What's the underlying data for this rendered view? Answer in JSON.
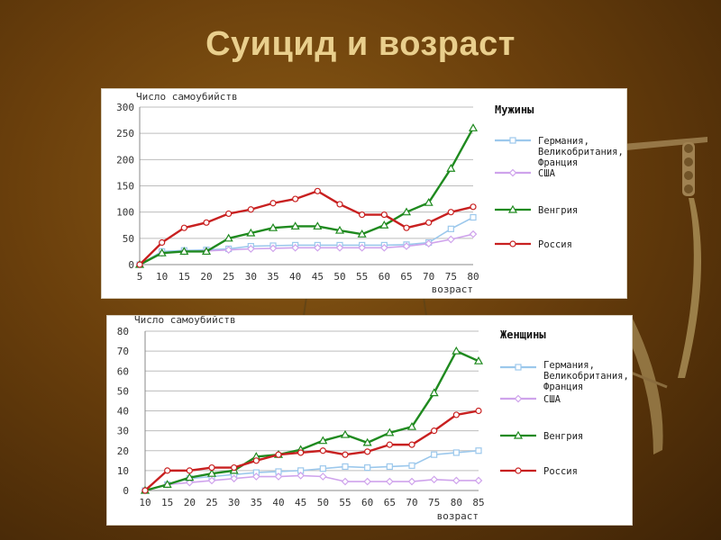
{
  "title": "Суицид и возраст",
  "colors": {
    "germany_uk_france": "#9cc8ec",
    "usa": "#cfa3ec",
    "hungary": "#1f8a1f",
    "russia": "#c82020",
    "gridline": "#bdbdbd",
    "axis_text": "#333333"
  },
  "chart_data": [
    {
      "type": "line",
      "title": "Мужины",
      "ylabel": "Число самоубийств",
      "xlabel": "возраст",
      "ylim": [
        0,
        300
      ],
      "yticks": [
        0,
        50,
        100,
        150,
        200,
        250,
        300
      ],
      "grid": true,
      "legend": "right",
      "x": [
        5,
        10,
        15,
        20,
        25,
        30,
        35,
        40,
        45,
        50,
        55,
        60,
        65,
        70,
        75,
        80
      ],
      "series": [
        {
          "name": "Германия, Великобритания, Франция",
          "color": "#9cc8ec",
          "marker": "square",
          "values": [
            0,
            25,
            27,
            28,
            30,
            35,
            36,
            37,
            37,
            37,
            37,
            37,
            38,
            42,
            68,
            90
          ]
        },
        {
          "name": "США",
          "color": "#cfa3ec",
          "marker": "diamond",
          "values": [
            0,
            22,
            25,
            26,
            28,
            30,
            31,
            32,
            32,
            32,
            32,
            32,
            35,
            40,
            48,
            58
          ]
        },
        {
          "name": "Венгрия",
          "color": "#1f8a1f",
          "marker": "triangle",
          "values": [
            0,
            22,
            25,
            25,
            50,
            60,
            70,
            73,
            73,
            65,
            58,
            75,
            100,
            118,
            183,
            260
          ]
        },
        {
          "name": "Россия",
          "color": "#c82020",
          "marker": "circle",
          "values": [
            0,
            42,
            70,
            80,
            97,
            105,
            117,
            125,
            140,
            115,
            95,
            95,
            70,
            80,
            100,
            110
          ]
        }
      ]
    },
    {
      "type": "line",
      "title": "Женщины",
      "ylabel": "Число самоубийств",
      "xlabel": "возраст",
      "ylim": [
        0,
        80
      ],
      "yticks": [
        0,
        10,
        20,
        30,
        40,
        50,
        60,
        70,
        80
      ],
      "grid": true,
      "legend": "right",
      "x": [
        10,
        15,
        20,
        25,
        30,
        35,
        40,
        45,
        50,
        55,
        60,
        65,
        70,
        75,
        80,
        85
      ],
      "series": [
        {
          "name": "Германия, Великобритания, Франция",
          "color": "#9cc8ec",
          "marker": "square",
          "values": [
            0,
            3,
            6,
            7,
            8,
            9,
            9.5,
            10,
            11,
            12,
            11.5,
            12,
            12.5,
            18,
            19,
            20
          ]
        },
        {
          "name": "США",
          "color": "#cfa3ec",
          "marker": "diamond",
          "values": [
            0,
            3,
            4,
            5,
            6,
            7,
            7,
            7.5,
            7,
            4.5,
            4.5,
            4.5,
            4.5,
            5.5,
            5,
            5
          ]
        },
        {
          "name": "Венгрия",
          "color": "#1f8a1f",
          "marker": "triangle",
          "values": [
            0,
            3,
            6.5,
            8.5,
            10,
            17,
            18,
            20.5,
            25,
            28,
            24,
            29,
            32,
            49,
            70,
            65
          ]
        },
        {
          "name": "Россия",
          "color": "#c82020",
          "marker": "circle",
          "values": [
            0,
            10,
            10,
            11.5,
            11.5,
            15,
            18,
            19,
            20,
            18,
            19.5,
            23,
            23,
            30,
            38,
            40
          ]
        }
      ]
    }
  ]
}
